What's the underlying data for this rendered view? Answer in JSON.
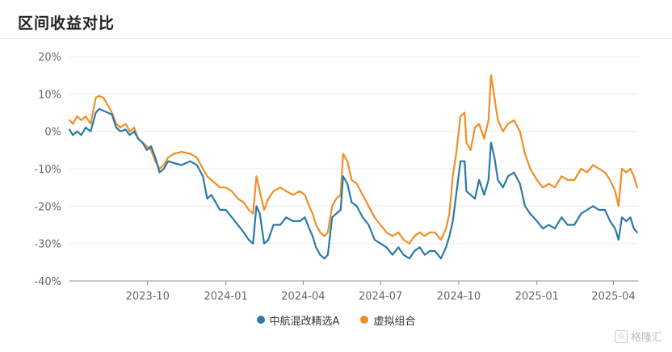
{
  "header": {
    "title": "区间收益对比"
  },
  "colors": {
    "fund": "#2b7aa6",
    "portfolio": "#f28e26",
    "grid": "#eeeeee",
    "axis": "#999999"
  },
  "watermark": {
    "logo_text": "G",
    "text": "格隆汇"
  },
  "chart_data": {
    "type": "line",
    "title": "区间收益对比",
    "y_ticks": [
      "20%",
      "10%",
      "0%",
      "-10%",
      "-20%",
      "-30%",
      "-40%"
    ],
    "y_tick_values": [
      20,
      10,
      0,
      -10,
      -20,
      -30,
      -40
    ],
    "ylim": [
      -40,
      20
    ],
    "x_ticks": [
      "2023-10",
      "2024-01",
      "2024-04",
      "2024-07",
      "2024-10",
      "2025-01",
      "2025-04"
    ],
    "x_tick_values": [
      "2023-10-01",
      "2024-01-01",
      "2024-04-01",
      "2024-07-01",
      "2024-10-01",
      "2025-01-01",
      "2025-04-01"
    ],
    "xlim": [
      "2023-07-01",
      "2025-04-30"
    ],
    "grid": true,
    "legend_position": "bottom-center",
    "series": [
      {
        "name": "中航混改精选A",
        "color": "#2b7aa6",
        "points": [
          [
            "2023-07-01",
            0.5
          ],
          [
            "2023-07-05",
            -1
          ],
          [
            "2023-07-10",
            0
          ],
          [
            "2023-07-15",
            -1
          ],
          [
            "2023-07-20",
            1
          ],
          [
            "2023-07-26",
            0
          ],
          [
            "2023-08-01",
            5
          ],
          [
            "2023-08-05",
            6
          ],
          [
            "2023-08-10",
            5.5
          ],
          [
            "2023-08-15",
            5
          ],
          [
            "2023-08-20",
            4.5
          ],
          [
            "2023-08-25",
            1
          ],
          [
            "2023-08-30",
            0
          ],
          [
            "2023-09-05",
            0.5
          ],
          [
            "2023-09-10",
            -1
          ],
          [
            "2023-09-15",
            0
          ],
          [
            "2023-09-20",
            -2
          ],
          [
            "2023-09-25",
            -3
          ],
          [
            "2023-09-30",
            -5
          ],
          [
            "2023-10-05",
            -4
          ],
          [
            "2023-10-10",
            -7
          ],
          [
            "2023-10-15",
            -11
          ],
          [
            "2023-10-20",
            -10
          ],
          [
            "2023-10-25",
            -8
          ],
          [
            "2023-11-01",
            -8.5
          ],
          [
            "2023-11-10",
            -9
          ],
          [
            "2023-11-20",
            -8
          ],
          [
            "2023-11-28",
            -9
          ],
          [
            "2023-12-05",
            -12
          ],
          [
            "2023-12-10",
            -18
          ],
          [
            "2023-12-15",
            -17
          ],
          [
            "2023-12-20",
            -19
          ],
          [
            "2023-12-25",
            -21
          ],
          [
            "2024-01-01",
            -21
          ],
          [
            "2024-01-08",
            -23
          ],
          [
            "2024-01-15",
            -25
          ],
          [
            "2024-01-22",
            -27
          ],
          [
            "2024-01-28",
            -29
          ],
          [
            "2024-02-02",
            -30
          ],
          [
            "2024-02-06",
            -20
          ],
          [
            "2024-02-10",
            -22
          ],
          [
            "2024-02-15",
            -30
          ],
          [
            "2024-02-20",
            -29
          ],
          [
            "2024-02-26",
            -25
          ],
          [
            "2024-03-05",
            -25
          ],
          [
            "2024-03-12",
            -23
          ],
          [
            "2024-03-20",
            -24
          ],
          [
            "2024-03-28",
            -24
          ],
          [
            "2024-04-03",
            -23
          ],
          [
            "2024-04-08",
            -26
          ],
          [
            "2024-04-12",
            -28
          ],
          [
            "2024-04-16",
            -31
          ],
          [
            "2024-04-21",
            -33
          ],
          [
            "2024-04-26",
            -34
          ],
          [
            "2024-04-30",
            -33
          ],
          [
            "2024-05-05",
            -23
          ],
          [
            "2024-05-10",
            -22
          ],
          [
            "2024-05-15",
            -21
          ],
          [
            "2024-05-18",
            -12
          ],
          [
            "2024-05-23",
            -14
          ],
          [
            "2024-05-28",
            -19
          ],
          [
            "2024-06-03",
            -20
          ],
          [
            "2024-06-10",
            -23
          ],
          [
            "2024-06-17",
            -25
          ],
          [
            "2024-06-24",
            -29
          ],
          [
            "2024-07-01",
            -30
          ],
          [
            "2024-07-08",
            -31
          ],
          [
            "2024-07-15",
            -33
          ],
          [
            "2024-07-22",
            -31
          ],
          [
            "2024-07-28",
            -33
          ],
          [
            "2024-08-04",
            -34
          ],
          [
            "2024-08-10",
            -32
          ],
          [
            "2024-08-16",
            -31
          ],
          [
            "2024-08-22",
            -33
          ],
          [
            "2024-08-28",
            -32
          ],
          [
            "2024-09-03",
            -32
          ],
          [
            "2024-09-10",
            -34
          ],
          [
            "2024-09-16",
            -31
          ],
          [
            "2024-09-20",
            -28
          ],
          [
            "2024-09-24",
            -24
          ],
          [
            "2024-09-28",
            -17
          ],
          [
            "2024-10-03",
            -8
          ],
          [
            "2024-10-08",
            -8
          ],
          [
            "2024-10-10",
            -16
          ],
          [
            "2024-10-15",
            -17
          ],
          [
            "2024-10-20",
            -18
          ],
          [
            "2024-10-25",
            -13
          ],
          [
            "2024-10-31",
            -17
          ],
          [
            "2024-11-05",
            -13
          ],
          [
            "2024-11-08",
            -3
          ],
          [
            "2024-11-12",
            -7
          ],
          [
            "2024-11-16",
            -13
          ],
          [
            "2024-11-22",
            -15
          ],
          [
            "2024-11-28",
            -12
          ],
          [
            "2024-12-05",
            -11
          ],
          [
            "2024-12-12",
            -14
          ],
          [
            "2024-12-18",
            -20
          ],
          [
            "2024-12-24",
            -22
          ],
          [
            "2025-01-01",
            -24
          ],
          [
            "2025-01-08",
            -26
          ],
          [
            "2025-01-15",
            -25
          ],
          [
            "2025-01-22",
            -26
          ],
          [
            "2025-01-30",
            -23
          ],
          [
            "2025-02-06",
            -25
          ],
          [
            "2025-02-14",
            -25
          ],
          [
            "2025-02-22",
            -22
          ],
          [
            "2025-03-01",
            -21
          ],
          [
            "2025-03-08",
            -20
          ],
          [
            "2025-03-15",
            -21
          ],
          [
            "2025-03-22",
            -21
          ],
          [
            "2025-03-28",
            -24
          ],
          [
            "2025-04-03",
            -26
          ],
          [
            "2025-04-07",
            -29
          ],
          [
            "2025-04-11",
            -23
          ],
          [
            "2025-04-16",
            -24
          ],
          [
            "2025-04-21",
            -23
          ],
          [
            "2025-04-25",
            -26
          ],
          [
            "2025-04-29",
            -27
          ]
        ]
      },
      {
        "name": "虚拟组合",
        "color": "#f28e26",
        "points": [
          [
            "2023-07-01",
            3
          ],
          [
            "2023-07-05",
            2
          ],
          [
            "2023-07-10",
            4
          ],
          [
            "2023-07-15",
            3
          ],
          [
            "2023-07-20",
            4
          ],
          [
            "2023-07-26",
            2
          ],
          [
            "2023-08-01",
            9
          ],
          [
            "2023-08-05",
            9.5
          ],
          [
            "2023-08-10",
            9
          ],
          [
            "2023-08-15",
            7
          ],
          [
            "2023-08-20",
            5
          ],
          [
            "2023-08-25",
            2
          ],
          [
            "2023-08-30",
            1
          ],
          [
            "2023-09-05",
            2
          ],
          [
            "2023-09-10",
            0
          ],
          [
            "2023-09-15",
            1
          ],
          [
            "2023-09-20",
            -2
          ],
          [
            "2023-09-25",
            -3
          ],
          [
            "2023-09-30",
            -4
          ],
          [
            "2023-10-05",
            -5
          ],
          [
            "2023-10-10",
            -8
          ],
          [
            "2023-10-15",
            -10
          ],
          [
            "2023-10-20",
            -9
          ],
          [
            "2023-10-25",
            -7
          ],
          [
            "2023-11-01",
            -6
          ],
          [
            "2023-11-10",
            -5.5
          ],
          [
            "2023-11-20",
            -6
          ],
          [
            "2023-11-28",
            -7
          ],
          [
            "2023-12-05",
            -10
          ],
          [
            "2023-12-10",
            -12
          ],
          [
            "2023-12-15",
            -13
          ],
          [
            "2023-12-20",
            -14
          ],
          [
            "2023-12-25",
            -15
          ],
          [
            "2024-01-01",
            -15
          ],
          [
            "2024-01-08",
            -16
          ],
          [
            "2024-01-15",
            -18
          ],
          [
            "2024-01-22",
            -19
          ],
          [
            "2024-01-28",
            -21
          ],
          [
            "2024-02-02",
            -22
          ],
          [
            "2024-02-06",
            -12
          ],
          [
            "2024-02-10",
            -16
          ],
          [
            "2024-02-15",
            -21
          ],
          [
            "2024-02-20",
            -18
          ],
          [
            "2024-02-26",
            -16
          ],
          [
            "2024-03-05",
            -15
          ],
          [
            "2024-03-12",
            -16
          ],
          [
            "2024-03-20",
            -17
          ],
          [
            "2024-03-28",
            -16
          ],
          [
            "2024-04-03",
            -17
          ],
          [
            "2024-04-08",
            -20
          ],
          [
            "2024-04-12",
            -22
          ],
          [
            "2024-04-16",
            -25
          ],
          [
            "2024-04-21",
            -27
          ],
          [
            "2024-04-26",
            -28
          ],
          [
            "2024-04-30",
            -27
          ],
          [
            "2024-05-05",
            -20
          ],
          [
            "2024-05-10",
            -18
          ],
          [
            "2024-05-15",
            -17
          ],
          [
            "2024-05-18",
            -6
          ],
          [
            "2024-05-23",
            -8
          ],
          [
            "2024-05-28",
            -13
          ],
          [
            "2024-06-03",
            -14
          ],
          [
            "2024-06-10",
            -17
          ],
          [
            "2024-06-17",
            -20
          ],
          [
            "2024-06-24",
            -23
          ],
          [
            "2024-07-01",
            -25
          ],
          [
            "2024-07-08",
            -27
          ],
          [
            "2024-07-15",
            -28
          ],
          [
            "2024-07-22",
            -27
          ],
          [
            "2024-07-28",
            -29
          ],
          [
            "2024-08-04",
            -30
          ],
          [
            "2024-08-10",
            -28
          ],
          [
            "2024-08-16",
            -27
          ],
          [
            "2024-08-22",
            -28
          ],
          [
            "2024-08-28",
            -27
          ],
          [
            "2024-09-03",
            -27
          ],
          [
            "2024-09-10",
            -29
          ],
          [
            "2024-09-16",
            -26
          ],
          [
            "2024-09-20",
            -22
          ],
          [
            "2024-09-24",
            -12
          ],
          [
            "2024-09-28",
            -6
          ],
          [
            "2024-10-03",
            4
          ],
          [
            "2024-10-08",
            5
          ],
          [
            "2024-10-10",
            -3
          ],
          [
            "2024-10-15",
            -5
          ],
          [
            "2024-10-20",
            1
          ],
          [
            "2024-10-25",
            2
          ],
          [
            "2024-10-31",
            -2
          ],
          [
            "2024-11-05",
            3
          ],
          [
            "2024-11-08",
            15
          ],
          [
            "2024-11-12",
            9
          ],
          [
            "2024-11-16",
            3
          ],
          [
            "2024-11-22",
            0
          ],
          [
            "2024-11-28",
            2
          ],
          [
            "2024-12-05",
            3
          ],
          [
            "2024-12-12",
            0
          ],
          [
            "2024-12-18",
            -6
          ],
          [
            "2024-12-24",
            -10
          ],
          [
            "2025-01-01",
            -13
          ],
          [
            "2025-01-08",
            -15
          ],
          [
            "2025-01-15",
            -14
          ],
          [
            "2025-01-22",
            -15
          ],
          [
            "2025-01-30",
            -12
          ],
          [
            "2025-02-06",
            -13
          ],
          [
            "2025-02-14",
            -13
          ],
          [
            "2025-02-22",
            -10
          ],
          [
            "2025-03-01",
            -11
          ],
          [
            "2025-03-08",
            -9
          ],
          [
            "2025-03-15",
            -10
          ],
          [
            "2025-03-22",
            -11
          ],
          [
            "2025-03-28",
            -13
          ],
          [
            "2025-04-03",
            -16
          ],
          [
            "2025-04-07",
            -20
          ],
          [
            "2025-04-11",
            -10
          ],
          [
            "2025-04-16",
            -11
          ],
          [
            "2025-04-21",
            -10
          ],
          [
            "2025-04-25",
            -12
          ],
          [
            "2025-04-29",
            -15
          ]
        ]
      }
    ]
  }
}
